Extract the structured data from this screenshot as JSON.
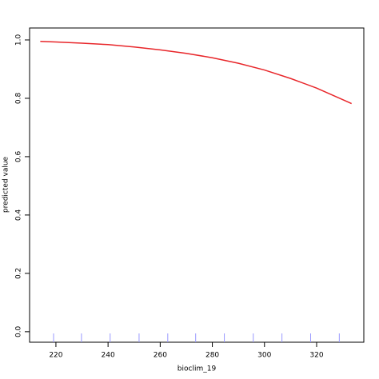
{
  "chart_data": {
    "type": "line",
    "x_label": "bioclim_19",
    "y_label": "predicted value",
    "x": [
      214,
      220,
      230,
      240,
      250,
      260,
      270,
      280,
      290,
      300,
      310,
      320,
      333.4
    ],
    "series": [
      {
        "color": "#e8262a",
        "values": [
          0.995,
          0.993,
          0.989,
          0.984,
          0.976,
          0.966,
          0.954,
          0.939,
          0.92,
          0.897,
          0.868,
          0.835,
          0.782
        ]
      }
    ],
    "rug": [
      219.1,
      229.8,
      240.8,
      251.9,
      262.9,
      273.6,
      284.6,
      295.7,
      306.7,
      317.7,
      328.7
    ],
    "rug_color": "#9999ff",
    "xlim": [
      209.9,
      338.1
    ],
    "xticks": [
      220,
      240,
      260,
      280,
      300,
      320
    ],
    "ylim": [
      -0.036,
      1.041
    ],
    "yticks": [
      {
        "value": 0,
        "label": "0.0"
      },
      0.2,
      0.4,
      0.6,
      0.8,
      {
        "value": 1,
        "label": "1.0"
      }
    ]
  }
}
